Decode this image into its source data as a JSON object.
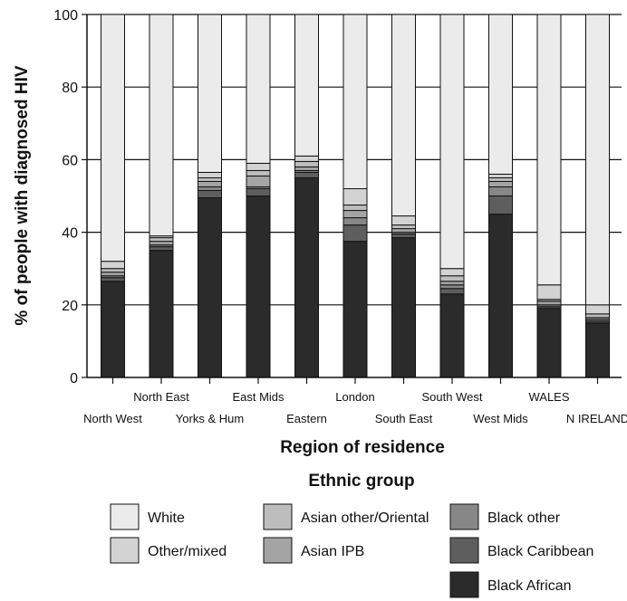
{
  "chart_data": {
    "type": "bar",
    "stacked": true,
    "title": "",
    "xlabel": "Region of residence",
    "ylabel": "% of people with diagnosed HIV",
    "ylim": [
      0,
      100
    ],
    "yticks": [
      0,
      20,
      40,
      60,
      80,
      100
    ],
    "grid": true,
    "legend_title": "Ethnic group",
    "legend_position": "bottom",
    "categories": [
      "North West",
      "North East",
      "Yorks & Hum",
      "East Mids",
      "Eastern",
      "London",
      "South East",
      "South West",
      "West Mids",
      "WALES",
      "N IRELAND"
    ],
    "series": [
      {
        "name": "Black African",
        "color": "#2b2b2b",
        "values": [
          26.5,
          35.0,
          49.5,
          50.0,
          55.0,
          37.5,
          38.5,
          23.0,
          45.0,
          19.0,
          15.0
        ]
      },
      {
        "name": "Black Caribbean",
        "color": "#5e5e5e",
        "values": [
          1.0,
          1.0,
          2.0,
          2.0,
          1.5,
          4.5,
          1.0,
          1.5,
          5.0,
          0.5,
          0.5
        ]
      },
      {
        "name": "Black other",
        "color": "#878787",
        "values": [
          0.5,
          0.5,
          1.0,
          0.5,
          0.5,
          2.0,
          0.5,
          1.0,
          2.5,
          0.5,
          0.5
        ]
      },
      {
        "name": "Asian IPB",
        "color": "#a4a4a4",
        "values": [
          1.0,
          1.0,
          1.5,
          3.0,
          1.0,
          2.0,
          1.0,
          1.0,
          1.5,
          1.0,
          0.5
        ]
      },
      {
        "name": "Asian other/Oriental",
        "color": "#bdbdbd",
        "values": [
          1.0,
          1.0,
          1.0,
          1.5,
          1.5,
          1.5,
          1.0,
          1.5,
          1.0,
          0.5,
          1.0
        ]
      },
      {
        "name": "Other/mixed",
        "color": "#d3d3d3",
        "values": [
          2.0,
          0.5,
          1.5,
          2.0,
          1.5,
          4.5,
          2.5,
          2.0,
          1.0,
          4.0,
          2.5
        ]
      },
      {
        "name": "White",
        "color": "#ebebeb",
        "values": [
          68.0,
          61.0,
          43.5,
          41.0,
          39.0,
          48.0,
          55.5,
          70.0,
          44.0,
          74.5,
          80.0
        ]
      }
    ],
    "legend_order": [
      "White",
      "Asian other/Oriental",
      "Black other",
      "Other/mixed",
      "Asian IPB",
      "Black Caribbean",
      "Black African"
    ]
  }
}
